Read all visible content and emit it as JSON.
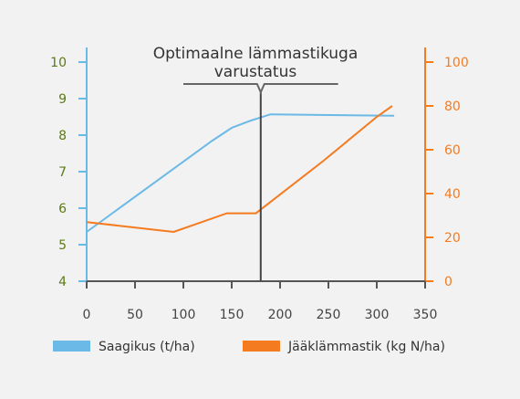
{
  "chart_data": {
    "type": "line",
    "title": "",
    "x": {
      "ticks": [
        0,
        50,
        100,
        150,
        200,
        250,
        300,
        350
      ],
      "range": [
        0,
        350
      ]
    },
    "y_left": {
      "ticks": [
        4,
        5,
        6,
        7,
        8,
        9,
        10
      ],
      "range": [
        4,
        10
      ],
      "color": "#5a7a16"
    },
    "y_right": {
      "ticks": [
        0,
        20,
        40,
        60,
        80,
        100
      ],
      "range": [
        0,
        100
      ],
      "color": "#f47b20"
    },
    "series": [
      {
        "name": "Saagikus (t/ha)",
        "axis": "left",
        "color": "#6bb9e6",
        "points": [
          [
            0,
            5.35
          ],
          [
            130,
            7.85
          ],
          [
            150,
            8.2
          ],
          [
            170,
            8.4
          ],
          [
            190,
            8.57
          ],
          [
            318,
            8.53
          ]
        ]
      },
      {
        "name": "Jääklämmastik (kg N/ha)",
        "axis": "right",
        "color": "#f47b20",
        "points": [
          [
            0,
            27
          ],
          [
            90,
            22.5
          ],
          [
            145,
            31
          ],
          [
            175,
            31
          ],
          [
            245,
            55
          ],
          [
            300,
            75
          ],
          [
            316,
            80
          ]
        ]
      }
    ],
    "annotation": {
      "lines": [
        "Optimaalne lämmastikuga",
        "varustatus"
      ],
      "x": 180,
      "bracket_x": [
        100,
        260
      ]
    },
    "legend_position": "bottom",
    "grid": false
  }
}
